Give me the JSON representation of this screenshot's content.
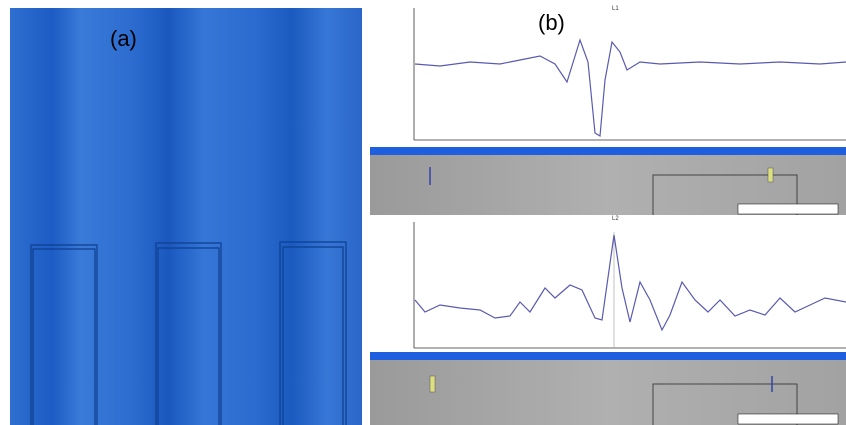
{
  "panels": [
    {
      "label": "(a)"
    },
    {
      "label": "(b)"
    }
  ],
  "plots": [
    {
      "label": "L1"
    },
    {
      "label": "L2"
    }
  ]
}
